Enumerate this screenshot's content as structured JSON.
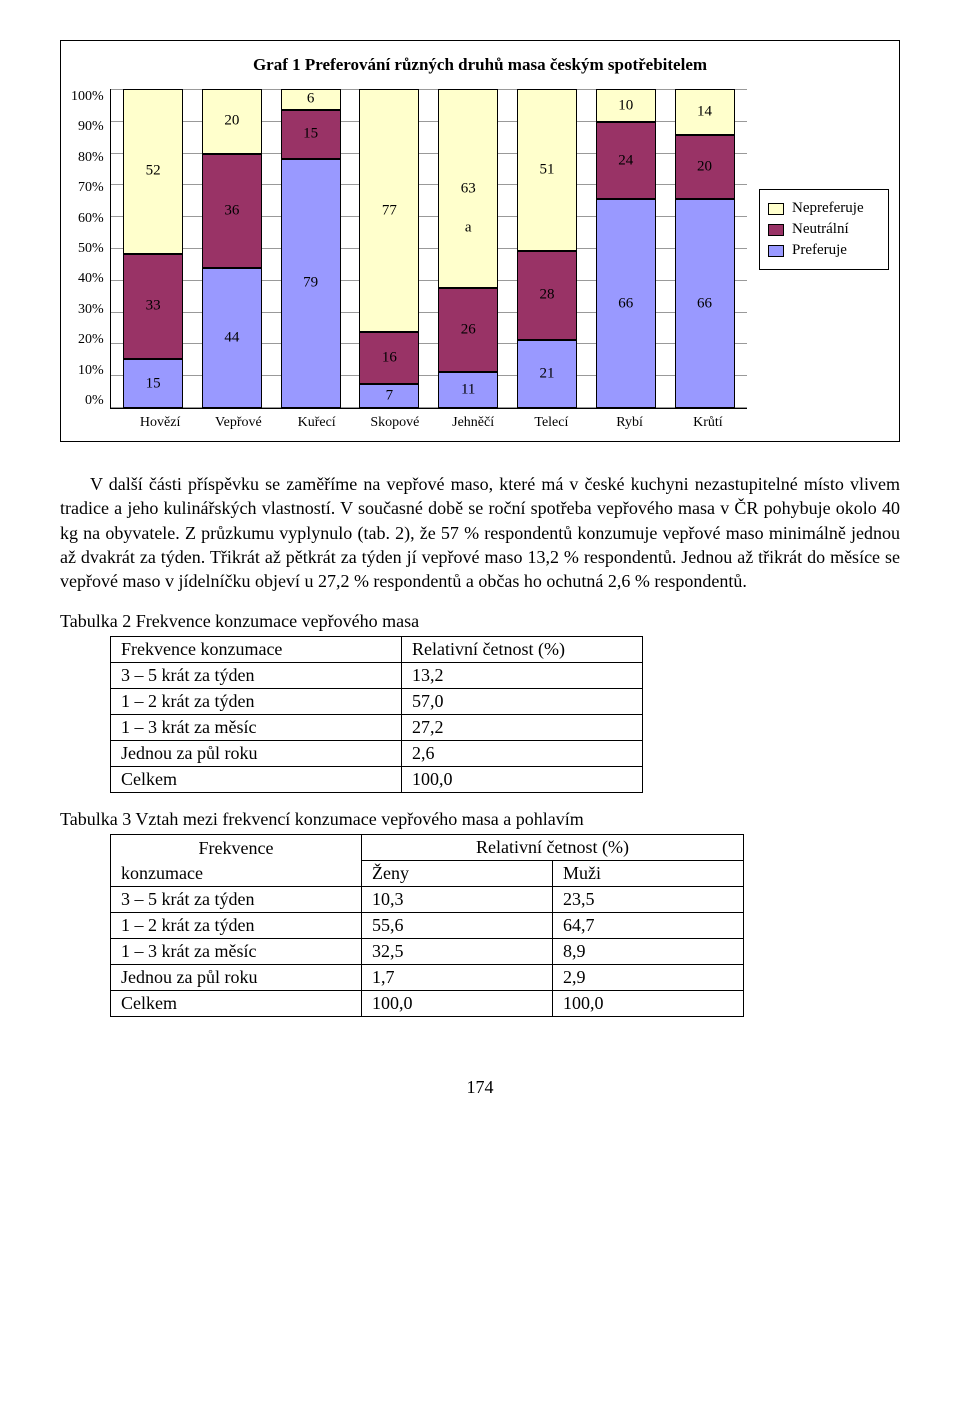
{
  "chart": {
    "title": "Graf 1 Preferování různých druhů masa českým spotřebitelem",
    "type": "stacked-bar-100",
    "categories": [
      "Hovězí",
      "Vepřové",
      "Kuřecí",
      "Skopové",
      "Jehněčí",
      "Telecí",
      "Rybí",
      "Krůtí"
    ],
    "series": [
      {
        "name": "Nepreferuje",
        "color": "#ffffcc"
      },
      {
        "name": "Neutrální",
        "color": "#993366"
      },
      {
        "name": "Preferuje",
        "color": "#9999ff"
      }
    ],
    "bars": [
      {
        "nepref": 52,
        "neutral": 33,
        "pref": 15,
        "labels": [
          "52",
          "33",
          "15"
        ]
      },
      {
        "nepref": 20,
        "neutral": 36,
        "pref": 44,
        "labels": [
          "20",
          "36",
          "44"
        ]
      },
      {
        "nepref": 6,
        "neutral": 15,
        "pref": 79,
        "labels": [
          "6",
          "15",
          "79"
        ]
      },
      {
        "nepref": 77,
        "neutral": 16,
        "pref": 7,
        "labels": [
          "77",
          "16",
          "7"
        ]
      },
      {
        "nepref": 63,
        "neutral": 26,
        "pref": 11,
        "labels": [
          "63",
          "26",
          "11"
        ],
        "extra_label": "a"
      },
      {
        "nepref": 51,
        "neutral": 28,
        "pref": 21,
        "labels": [
          "51",
          "28",
          "21"
        ]
      },
      {
        "nepref": 10,
        "neutral": 24,
        "pref": 66,
        "labels": [
          "10",
          "24",
          "66"
        ]
      },
      {
        "nepref": 14,
        "neutral": 20,
        "pref": 66,
        "labels": [
          "14",
          "20",
          "66"
        ]
      }
    ],
    "yticks": [
      "100%",
      "90%",
      "80%",
      "70%",
      "60%",
      "50%",
      "40%",
      "30%",
      "20%",
      "10%",
      "0%"
    ],
    "legend_labels": [
      "Nepreferuje",
      "Neutrální",
      "Preferuje"
    ],
    "grid_color": "#999999",
    "border_color": "#000000",
    "background_color": "#ffffff",
    "title_fontsize": 17,
    "label_fontsize": 15,
    "tick_fontsize": 14
  },
  "para1": "V další části příspěvku se zaměříme na vepřové maso, které má v české kuchyni nezastupitelné místo vlivem tradice a jeho kulinářských vlastností. V současné době se roční spotřeba vepřového masa v ČR pohybuje okolo 40 kg na obyvatele. Z průzkumu vyplynulo (tab. 2), že 57 % respondentů konzumuje vepřové maso minimálně jednou až dvakrát za týden. Třikrát až pětkrát za týden jí vepřové maso 13,2 % respondentů. Jednou až třikrát do měsíce se vepřové maso v jídelníčku objeví u 27,2 % respondentů a občas ho ochutná 2,6 % respondentů.",
  "table2": {
    "title": "Tabulka 2  Frekvence konzumace vepřového masa",
    "header": [
      "Frekvence konzumace",
      "Relativní četnost  (%)"
    ],
    "rows": [
      [
        "3 – 5 krát za týden",
        "13,2"
      ],
      [
        "1 – 2 krát za týden",
        "57,0"
      ],
      [
        "1 – 3 krát za měsíc",
        "27,2"
      ],
      [
        "Jednou za půl roku",
        "  2,6"
      ],
      [
        "Celkem",
        "100,0"
      ]
    ],
    "col_widths": [
      "270px",
      "220px"
    ]
  },
  "table3": {
    "title": "Tabulka 3  Vztah mezi frekvencí konzumace vepřového masa a pohlavím",
    "header_top": [
      "Frekvence",
      "Relativní  četnost (%)"
    ],
    "header_sub": [
      "konzumace",
      "Ženy",
      "Muži"
    ],
    "rows": [
      [
        "3 – 5 krát za týden",
        "10,3",
        "23,5"
      ],
      [
        "1 – 2 krát za týden",
        "55,6",
        "64,7"
      ],
      [
        "1 – 3 krát za měsíc",
        "32,5",
        "  8,9"
      ],
      [
        "Jednou za půl roku",
        "  1,7",
        "  2,9"
      ],
      [
        "Celkem",
        "100,0",
        "100,0"
      ]
    ],
    "col_widths": [
      "230px",
      "170px",
      "170px"
    ]
  },
  "page_number": "174"
}
